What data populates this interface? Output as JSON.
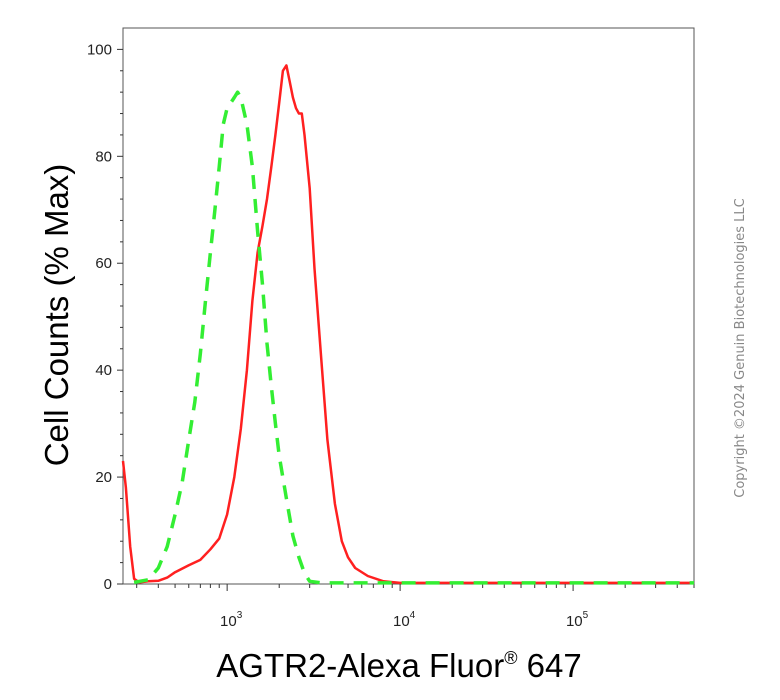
{
  "chart_data": {
    "type": "line",
    "title": "",
    "xlabel": "AGTR2-Alexa Fluor",
    "xlabel_reg": "®",
    "xlabel_suffix": " 647",
    "ylabel": "Cell Counts (% Max)",
    "x_scale": "log",
    "xlim": [
      250,
      500000
    ],
    "ylim": [
      0,
      104
    ],
    "y_ticks": [
      0,
      20,
      40,
      60,
      80,
      100
    ],
    "x_ticks": [
      {
        "value": 1000,
        "base": "10",
        "exp": "3"
      },
      {
        "value": 10000,
        "base": "10",
        "exp": "4"
      },
      {
        "value": 100000,
        "base": "10",
        "exp": "5"
      }
    ],
    "grid": false,
    "series": [
      {
        "color": "#ff2020",
        "dash": "solid",
        "points": [
          [
            250,
            23
          ],
          [
            260,
            18
          ],
          [
            275,
            7
          ],
          [
            290,
            1
          ],
          [
            310,
            0.3
          ],
          [
            350,
            0.5
          ],
          [
            400,
            0.6
          ],
          [
            450,
            1.2
          ],
          [
            500,
            2.2
          ],
          [
            600,
            3.5
          ],
          [
            700,
            4.5
          ],
          [
            800,
            6.5
          ],
          [
            900,
            8.5
          ],
          [
            1000,
            13
          ],
          [
            1100,
            20
          ],
          [
            1200,
            29
          ],
          [
            1300,
            40
          ],
          [
            1400,
            53
          ],
          [
            1500,
            62
          ],
          [
            1600,
            67
          ],
          [
            1700,
            72
          ],
          [
            1800,
            78
          ],
          [
            1900,
            84
          ],
          [
            2000,
            90
          ],
          [
            2100,
            96
          ],
          [
            2200,
            97
          ],
          [
            2300,
            94
          ],
          [
            2400,
            91
          ],
          [
            2500,
            89
          ],
          [
            2600,
            88
          ],
          [
            2700,
            88
          ],
          [
            2800,
            84
          ],
          [
            3000,
            74
          ],
          [
            3200,
            59
          ],
          [
            3500,
            42
          ],
          [
            3800,
            27
          ],
          [
            4200,
            15
          ],
          [
            4600,
            8
          ],
          [
            5000,
            5
          ],
          [
            5500,
            3
          ],
          [
            6500,
            1.5
          ],
          [
            8000,
            0.5
          ],
          [
            10000,
            0.2
          ],
          [
            100000,
            0.2
          ],
          [
            500000,
            0.2
          ]
        ]
      },
      {
        "color": "#33ee33",
        "dash": "dashed",
        "points": [
          [
            290,
            0.3
          ],
          [
            350,
            0.8
          ],
          [
            400,
            3
          ],
          [
            450,
            7
          ],
          [
            500,
            13
          ],
          [
            550,
            19
          ],
          [
            600,
            27
          ],
          [
            650,
            34
          ],
          [
            700,
            43
          ],
          [
            750,
            53
          ],
          [
            800,
            62
          ],
          [
            850,
            70
          ],
          [
            900,
            78
          ],
          [
            950,
            86
          ],
          [
            1000,
            89
          ],
          [
            1050,
            90
          ],
          [
            1100,
            91
          ],
          [
            1150,
            92
          ],
          [
            1200,
            91
          ],
          [
            1300,
            86
          ],
          [
            1400,
            78
          ],
          [
            1500,
            66
          ],
          [
            1600,
            56
          ],
          [
            1700,
            45
          ],
          [
            1800,
            37
          ],
          [
            1900,
            30
          ],
          [
            2000,
            24
          ],
          [
            2200,
            16
          ],
          [
            2400,
            9
          ],
          [
            2600,
            5
          ],
          [
            2800,
            2
          ],
          [
            3000,
            0.5
          ],
          [
            3500,
            0.2
          ],
          [
            10000,
            0.2
          ],
          [
            500000,
            0.2
          ]
        ]
      }
    ]
  },
  "copyright": "Copyright ©2024 Genuin Biotechnologies LLC"
}
